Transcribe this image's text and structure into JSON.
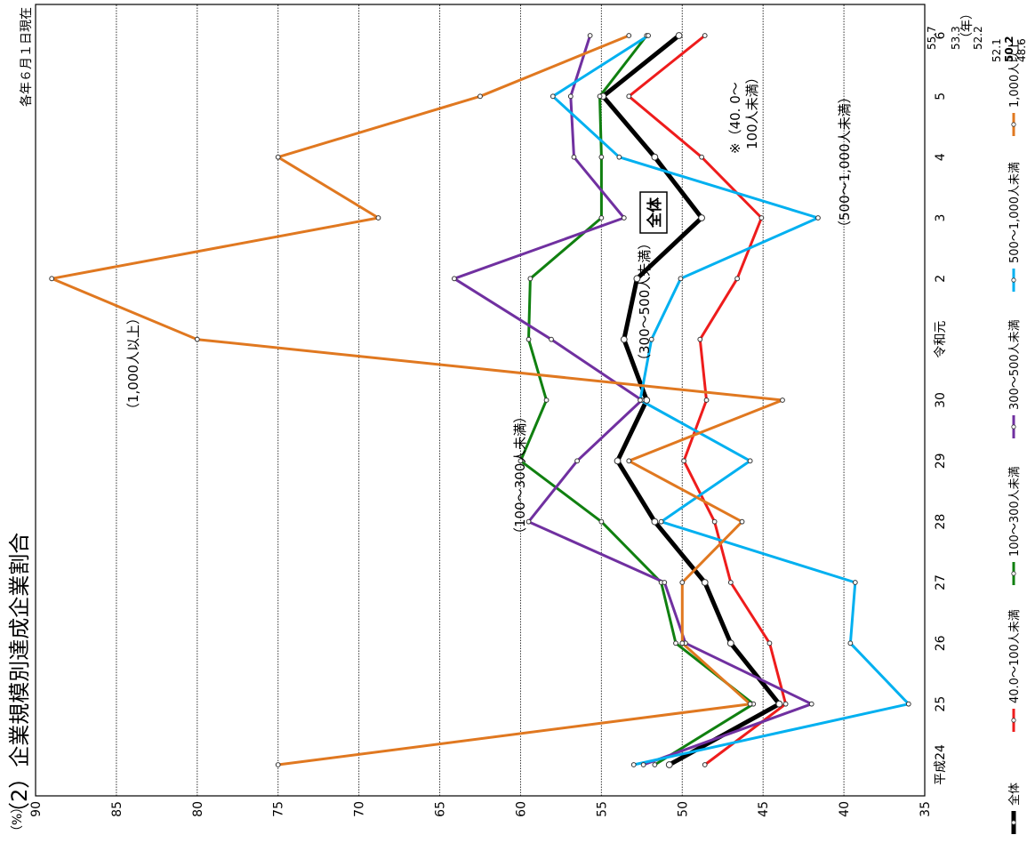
{
  "chart_data": {
    "type": "line",
    "title": "（2）企業規模別達成企業割合",
    "note": "各年６月１日現在",
    "ylabel": "（%）",
    "xlabel": "（年）",
    "ylim": [
      35,
      90
    ],
    "yticks": [
      35,
      40,
      45,
      50,
      55,
      60,
      65,
      70,
      75,
      80,
      85,
      90
    ],
    "categories": [
      "平成24",
      "25",
      "26",
      "27",
      "28",
      "29",
      "30",
      "令和元",
      "2",
      "3",
      "4",
      "5",
      "6"
    ],
    "grid": true,
    "legend": "bottom",
    "series": [
      {
        "key": "s0",
        "name": "全体",
        "color": "#000000",
        "width": 5,
        "values": [
          50.8,
          44.0,
          47.0,
          48.6,
          51.7,
          54.0,
          52.2,
          53.6,
          52.8,
          48.8,
          51.7,
          54.9,
          50.2
        ]
      },
      {
        "key": "s1",
        "name": "40.0～100人未満",
        "color": "#ee1c1c",
        "width": 3,
        "values": [
          48.6,
          43.6,
          44.6,
          47.0,
          48.0,
          49.9,
          48.5,
          48.9,
          46.6,
          45.1,
          48.8,
          53.3,
          48.6
        ]
      },
      {
        "key": "s2",
        "name": "100～300人未満",
        "color": "#108010",
        "width": 3,
        "values": [
          51.7,
          45.6,
          50.4,
          51.3,
          55.0,
          60.0,
          58.4,
          59.5,
          59.4,
          55.0,
          55.0,
          55.1,
          52.2
        ]
      },
      {
        "key": "s3",
        "name": "300～500人未満",
        "color": "#7030a0",
        "width": 3,
        "values": [
          52.4,
          42.0,
          49.8,
          51.1,
          59.5,
          56.5,
          52.5,
          58.1,
          64.1,
          53.6,
          56.7,
          56.9,
          55.7
        ]
      },
      {
        "key": "s4",
        "name": "500～1,000人未満",
        "color": "#00b0f0",
        "width": 3,
        "values": [
          53.0,
          36.0,
          39.6,
          39.3,
          51.3,
          45.8,
          52.6,
          51.9,
          50.1,
          41.6,
          53.9,
          58.0,
          52.1
        ]
      },
      {
        "key": "s5",
        "name": "1,000人以上",
        "color": "#e07820",
        "width": 3,
        "values": [
          75.0,
          45.8,
          50.0,
          50.0,
          46.3,
          53.3,
          43.8,
          80.0,
          89.0,
          68.8,
          75.0,
          62.5,
          53.3
        ]
      }
    ],
    "end_labels": [
      "55.7",
      "53.3",
      "52.2",
      "52.1",
      "50.2",
      "48.6"
    ],
    "annotations": [
      {
        "text": "（1,000人以上）"
      },
      {
        "text": "（300～500人未満）"
      },
      {
        "text": "（100～300人未満）"
      },
      {
        "text": "全体"
      },
      {
        "text": "（500～1,000人未満）"
      },
      {
        "text": "※（40. 0～"
      },
      {
        "text": "100人未満）"
      }
    ]
  }
}
